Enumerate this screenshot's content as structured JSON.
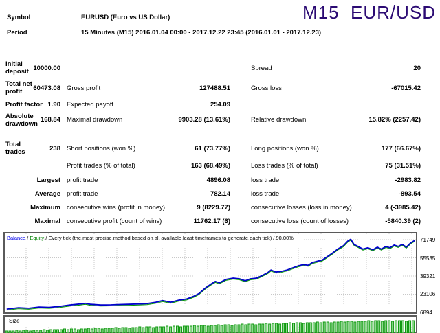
{
  "title": "M15  EUR/USD",
  "header": {
    "symbol_label": "Symbol",
    "symbol_value": "EURUSD (Euro vs US Dollar)",
    "period_label": "Period",
    "period_value": "15 Minutes (M15) 2016.01.04 00:00 - 2017.12.22 23:45 (2016.01.01 - 2017.12.23)"
  },
  "stats": {
    "rows": [
      {
        "c1": "Initial\ndeposit",
        "c2": "10000.00",
        "c3": "",
        "c4": "",
        "c5": "Spread",
        "c6": "20"
      },
      {
        "c1": "Total net\nprofit",
        "c2": "60473.08",
        "c3": "Gross profit",
        "c4": "127488.51",
        "c5": "Gross loss",
        "c6": "-67015.42"
      },
      {
        "c1": "Profit factor",
        "c2": "1.90",
        "c3": "Expected payoff",
        "c4": "254.09",
        "c5": "",
        "c6": ""
      },
      {
        "c1": "Absolute\ndrawdown",
        "c2": "168.84",
        "c3": "Maximal drawdown",
        "c4": "9903.28 (13.61%)",
        "c5": "Relative drawdown",
        "c6": "15.82% (2257.42)"
      },
      {
        "c1": "Total\ntrades",
        "c2": "238",
        "c3": "Short positions (won %)",
        "c4": "61 (73.77%)",
        "c5": "Long positions (won %)",
        "c6": "177 (66.67%)"
      },
      {
        "c1": "",
        "c2": "",
        "c3": "Profit trades (% of total)",
        "c4": "163 (68.49%)",
        "c5": "Loss trades (% of total)",
        "c6": "75 (31.51%)"
      },
      {
        "c1": "",
        "c2": "Largest",
        "c3": "profit trade",
        "c4": "4896.08",
        "c5": "loss trade",
        "c6": "-2983.82"
      },
      {
        "c1": "",
        "c2": "Average",
        "c3": "profit trade",
        "c4": "782.14",
        "c5": "loss trade",
        "c6": "-893.54"
      },
      {
        "c1": "",
        "c2": "Maximum",
        "c3": "consecutive wins (profit in money)",
        "c4": "9 (8229.77)",
        "c5": "consecutive losses (loss in money)",
        "c6": "4 (-3985.42)"
      },
      {
        "c1": "",
        "c2": "Maximal",
        "c3": "consecutive profit (count of wins)",
        "c4": "11762.17 (6)",
        "c5": "consecutive loss (count of losses)",
        "c6": "-5840.39 (2)"
      }
    ]
  },
  "chart_data": [
    {
      "type": "line",
      "legend": {
        "balance_label": "Balance",
        "equity_label": "Equity",
        "separator": " / ",
        "method_text": "Every tick (the most precise method based on all available least timeframes to generate each tick) / 90.00%"
      },
      "y_ticks": [
        71749,
        55535,
        39321,
        23106,
        6894
      ],
      "ylim": [
        6894,
        78000
      ],
      "grid": true,
      "colors": {
        "balance": "#0000cc",
        "equity": "#009900",
        "grid": "#c8c8c8"
      },
      "series": [
        {
          "name": "Balance",
          "points": [
            [
              0.003,
              9900
            ],
            [
              0.032,
              11100
            ],
            [
              0.057,
              10600
            ],
            [
              0.082,
              11700
            ],
            [
              0.107,
              11400
            ],
            [
              0.133,
              12300
            ],
            [
              0.158,
              13500
            ],
            [
              0.183,
              14400
            ],
            [
              0.195,
              15000
            ],
            [
              0.208,
              14100
            ],
            [
              0.233,
              13500
            ],
            [
              0.258,
              13600
            ],
            [
              0.279,
              13900
            ],
            [
              0.3,
              14100
            ],
            [
              0.326,
              14400
            ],
            [
              0.346,
              14700
            ],
            [
              0.367,
              15900
            ],
            [
              0.384,
              17400
            ],
            [
              0.404,
              16000
            ],
            [
              0.426,
              18000
            ],
            [
              0.443,
              18900
            ],
            [
              0.46,
              21300
            ],
            [
              0.473,
              23700
            ],
            [
              0.488,
              28500
            ],
            [
              0.502,
              32100
            ],
            [
              0.513,
              34500
            ],
            [
              0.523,
              33300
            ],
            [
              0.539,
              36300
            ],
            [
              0.557,
              37500
            ],
            [
              0.572,
              36900
            ],
            [
              0.586,
              35100
            ],
            [
              0.599,
              36900
            ],
            [
              0.614,
              37500
            ],
            [
              0.628,
              39900
            ],
            [
              0.641,
              42300
            ],
            [
              0.649,
              44700
            ],
            [
              0.661,
              42900
            ],
            [
              0.674,
              43500
            ],
            [
              0.688,
              44700
            ],
            [
              0.701,
              46500
            ],
            [
              0.715,
              48300
            ],
            [
              0.728,
              49500
            ],
            [
              0.74,
              48900
            ],
            [
              0.75,
              51300
            ],
            [
              0.762,
              52500
            ],
            [
              0.775,
              53700
            ],
            [
              0.787,
              56700
            ],
            [
              0.799,
              59700
            ],
            [
              0.812,
              63300
            ],
            [
              0.826,
              66300
            ],
            [
              0.837,
              70500
            ],
            [
              0.844,
              72100
            ],
            [
              0.852,
              67500
            ],
            [
              0.862,
              65700
            ],
            [
              0.874,
              63300
            ],
            [
              0.886,
              64500
            ],
            [
              0.898,
              62700
            ],
            [
              0.909,
              65100
            ],
            [
              0.919,
              63300
            ],
            [
              0.93,
              65700
            ],
            [
              0.94,
              64500
            ],
            [
              0.95,
              66900
            ],
            [
              0.96,
              65700
            ],
            [
              0.97,
              67500
            ],
            [
              0.98,
              65100
            ],
            [
              0.99,
              68700
            ],
            [
              1.0,
              71000
            ]
          ]
        },
        {
          "name": "Equity",
          "follows_balance": true
        }
      ]
    },
    {
      "type": "bar",
      "title": "Size",
      "colors": {
        "bar_fill": "#8fd98f",
        "bar_stroke": "#119911",
        "grid": "#c8c8c8"
      },
      "values": [
        1,
        1,
        1,
        2,
        1,
        2,
        2,
        1,
        2,
        2,
        2,
        3,
        2,
        3,
        3,
        3,
        3,
        4,
        3,
        4,
        4,
        3,
        4,
        4,
        5,
        4,
        5,
        5,
        4,
        5,
        5,
        5,
        6,
        5,
        6,
        6,
        5,
        6,
        6,
        7,
        6,
        7,
        7,
        6,
        7,
        7,
        7,
        8,
        7,
        8,
        8,
        7,
        8,
        8,
        8,
        9,
        8,
        9,
        9,
        8,
        9,
        9,
        10,
        9,
        10,
        10,
        9,
        10,
        10,
        11,
        10,
        11,
        11,
        10,
        11,
        11,
        12,
        11,
        12,
        12,
        11,
        12,
        12,
        13,
        12,
        13,
        13,
        12,
        13,
        13,
        13,
        14,
        13,
        14,
        14,
        13,
        14,
        14,
        15,
        14,
        15,
        15,
        14,
        15,
        15,
        15,
        16,
        15,
        16,
        16,
        15,
        16,
        16,
        15,
        16,
        16,
        16,
        15,
        16,
        16
      ]
    }
  ]
}
